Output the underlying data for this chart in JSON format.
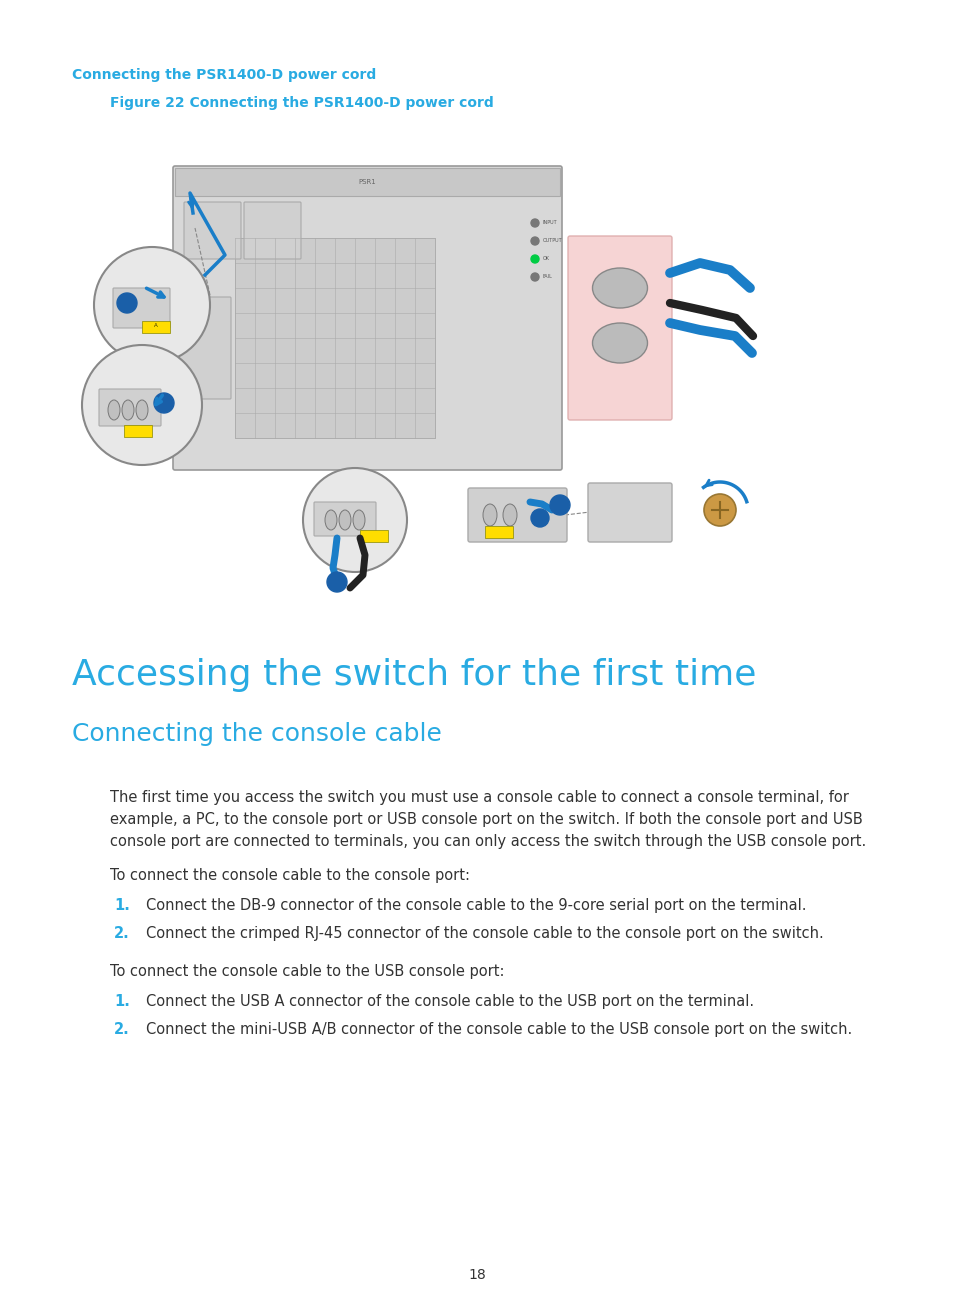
{
  "bg_color": "#ffffff",
  "cyan_color": "#29abe2",
  "text_color": "#333333",
  "section_heading": "Connecting the PSR1400-D power cord",
  "figure_caption": "Figure 22 Connecting the PSR1400-D power cord",
  "main_heading": "Accessing the switch for the first time",
  "sub_heading": "Connecting the console cable",
  "paragraph1_lines": [
    "The first time you access the switch you must use a console cable to connect a console terminal, for",
    "example, a PC, to the console port or USB console port on the switch. If both the console port and USB",
    "console port are connected to terminals, you can only access the switch through the USB console port."
  ],
  "para2_intro": "To connect the console cable to the console port:",
  "para2_items": [
    "Connect the DB-9 connector of the console cable to the 9-core serial port on the terminal.",
    "Connect the crimped RJ-45 connector of the console cable to the console port on the switch."
  ],
  "para3_intro": "To connect the console cable to the USB console port:",
  "para3_items": [
    "Connect the USB A connector of the console cable to the USB port on the terminal.",
    "Connect the mini-USB A/B connector of the console cable to the USB console port on the switch."
  ],
  "page_number": "18"
}
